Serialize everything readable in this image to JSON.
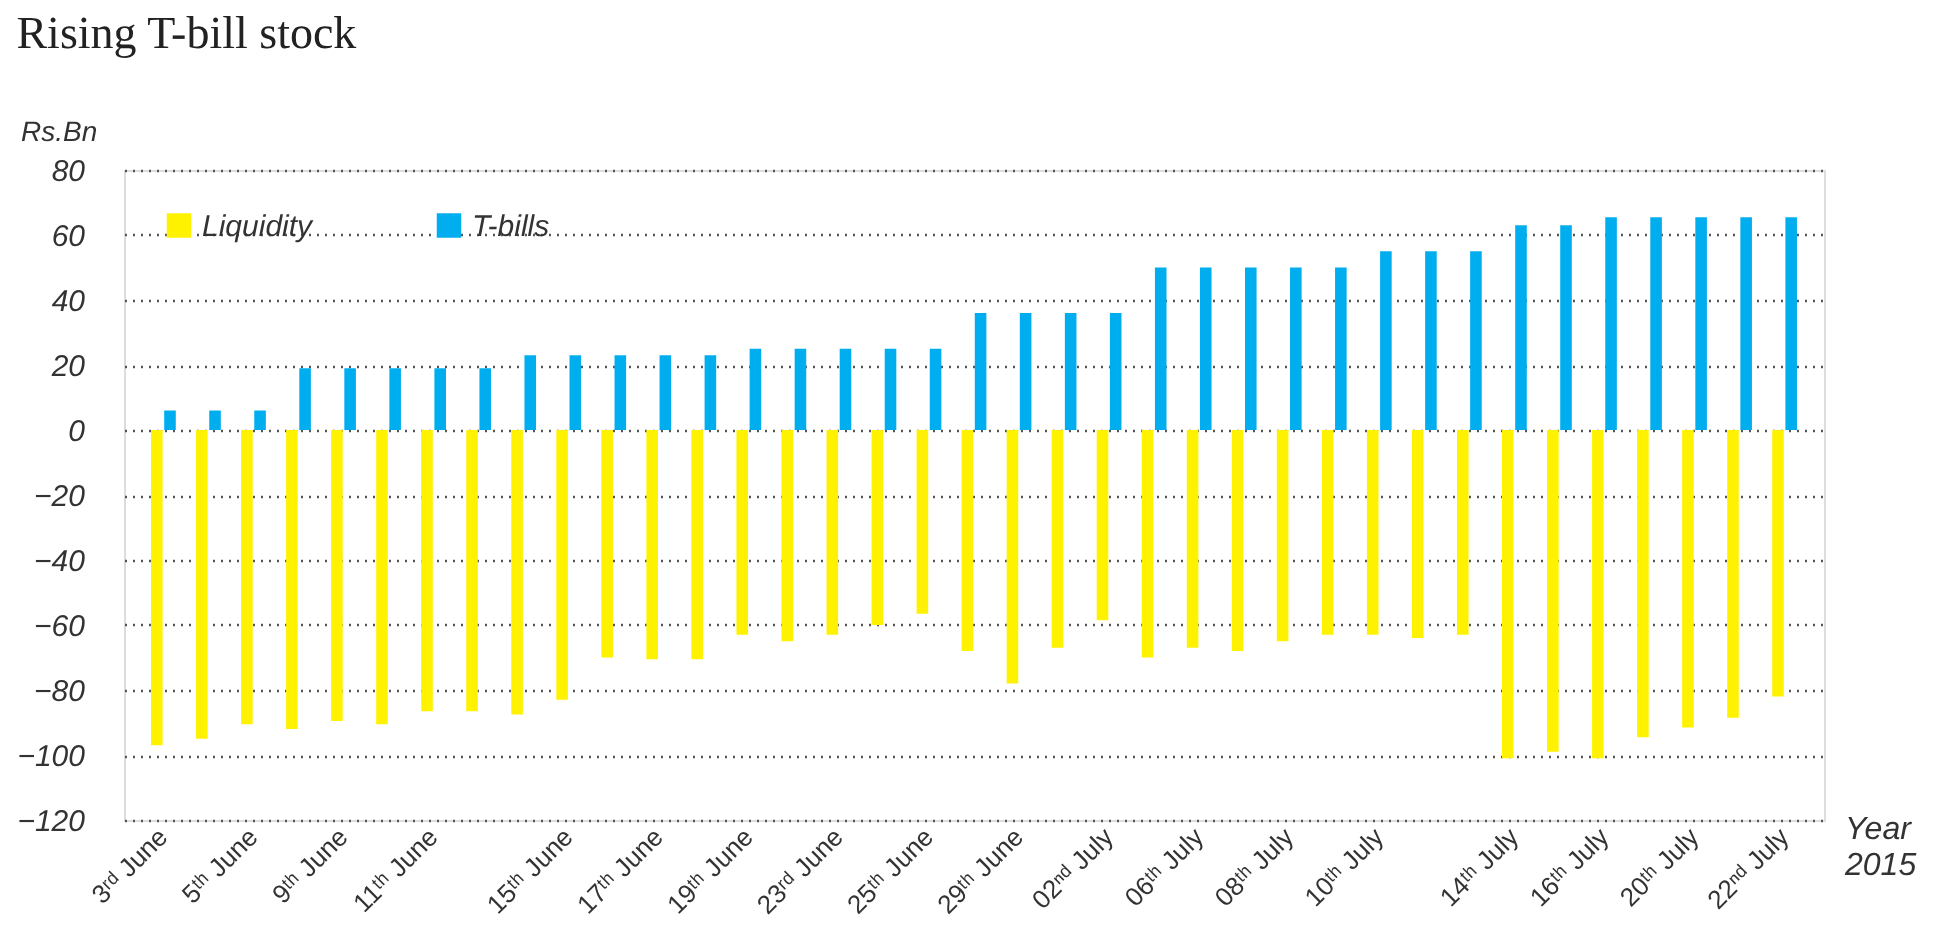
{
  "chart_data": {
    "type": "bar",
    "title": "Rising T-bill stock",
    "ylabel": "Rs.Bn",
    "xlabel": "Year\n2015",
    "categories": [
      "3ʳᵈ June",
      null,
      "5ᵗʰ June",
      null,
      "9ᵗʰ June",
      null,
      "11ᵗʰ June",
      null,
      null,
      "15ᵗʰ June",
      null,
      "17ᵗʰ June",
      null,
      "19ᵗʰ June",
      null,
      "23ʳᵈ June",
      null,
      "25ᵗʰ June",
      null,
      "29ᵗʰ June",
      null,
      "02ⁿᵈ July",
      null,
      "06ᵗʰ July",
      null,
      "08ᵗʰ July",
      null,
      "10ᵗʰ July",
      null,
      null,
      "14ᵗʰ July",
      null,
      "16ᵗʰ July",
      null,
      "20ᵗʰ July",
      null,
      "22ⁿᵈ July"
    ],
    "series": [
      {
        "name": "Liquidity",
        "color": "#fff200",
        "values": [
          -97,
          -95,
          -90.5,
          -92,
          -89.5,
          -90.5,
          -86.5,
          -86.5,
          -87.5,
          -83,
          -70,
          -70.5,
          -70.5,
          -63,
          -65,
          -63,
          -60,
          -56.5,
          -68,
          -78,
          -67,
          -58.5,
          -70,
          -67,
          -68,
          -65,
          -63,
          -63,
          -64,
          -63,
          -101,
          -99,
          -101,
          -94.5,
          -91.5,
          -88.5,
          -82
        ]
      },
      {
        "name": "T-bills",
        "color": "#00aeef",
        "values": [
          6,
          6,
          6,
          19,
          19,
          19,
          19,
          19,
          23,
          23,
          23,
          23,
          23,
          25,
          25,
          25,
          25,
          25,
          36,
          36,
          36,
          36,
          50,
          50,
          50,
          50,
          50,
          55,
          55,
          55,
          63,
          63,
          65.5,
          65.5,
          65.5,
          65.5,
          65.5
        ]
      }
    ],
    "ylim": [
      -120,
      80
    ],
    "yticks": [
      -120,
      -100,
      -80,
      -60,
      -40,
      -20,
      0,
      20,
      40,
      60,
      80
    ],
    "grid": "y",
    "legend": "top left"
  }
}
